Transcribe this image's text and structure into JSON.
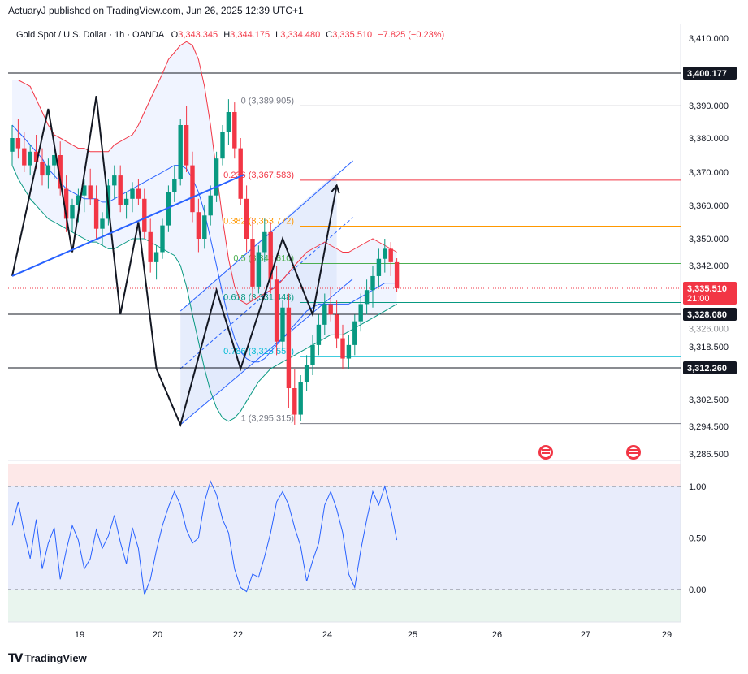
{
  "publisher_line": "ActuaryJ published on TradingView.com, Jun 26, 2025 12:39 UTC+1",
  "brand": "TradingView",
  "header": {
    "symbol": "Gold Spot / U.S. Dollar · 1h · OANDA",
    "open_label": "O",
    "open": "3,343.345",
    "high_label": "H",
    "high": "3,344.175",
    "low_label": "L",
    "low": "3,334.480",
    "close_label": "C",
    "close": "3,335.510",
    "change": "−7.825 (−0.23%)"
  },
  "colors": {
    "up": "#089981",
    "down": "#f23645",
    "bb_upper": "#f23645",
    "bb_lower": "#089981",
    "bb_basis": "#2962ff",
    "stoch": "#2962ff",
    "channel_fill": "#dbe5fb",
    "fib_0382": "#ff9800",
    "fib_05": "#4caf50",
    "fib_0618": "#089981",
    "fib_0786": "#00bcd4"
  },
  "price_axis": [
    "3,410.000",
    "3,390.000",
    "3,380.000",
    "3,370.000",
    "3,360.000",
    "3,350.000",
    "3,342.000",
    "3,318.500",
    "3,302.500",
    "3,294.500",
    "3,286.500"
  ],
  "price_axis_values": [
    3410,
    3390,
    3380,
    3370,
    3360,
    3350,
    3342,
    3318.5,
    3302.5,
    3294.5,
    3286.5
  ],
  "price_labels": [
    {
      "text": "3,400.177",
      "value": 3400.177,
      "bg": "#131722",
      "fg": "#ffffff"
    },
    {
      "text": "3,335.510",
      "sub": "21:00",
      "value": 3335.51,
      "bg": "#f23645",
      "fg": "#ffffff"
    },
    {
      "text": "3,328.080",
      "value": 3328.08,
      "bg": "#131722",
      "fg": "#ffffff"
    },
    {
      "text": "3,312.260",
      "value": 3312.26,
      "bg": "#131722",
      "fg": "#ffffff"
    },
    {
      "text": "3,326.000",
      "value": 3326.0,
      "bg": "#ffffff",
      "fg": "#131722",
      "partial": true
    }
  ],
  "horizontal_lines": [
    {
      "value": 3400.177,
      "color": "#131722"
    },
    {
      "value": 3328.08,
      "color": "#131722"
    },
    {
      "value": 3312.26,
      "color": "#131722"
    }
  ],
  "fib_levels": [
    {
      "label": "0 (3,389.905)",
      "ratio": "0",
      "value": 3389.905,
      "color": "#787b86"
    },
    {
      "label": "0.236 (3,367.583)",
      "ratio": "0.236",
      "value": 3367.583,
      "color": "#f23645"
    },
    {
      "label": "0.382 (3,353.772)",
      "ratio": "0.382",
      "value": 3353.772,
      "color": "#ff9800"
    },
    {
      "label": "0.5 (3,342.610)",
      "ratio": "0.5",
      "value": 3342.61,
      "color": "#4caf50"
    },
    {
      "label": "0.618 (3,331.448)",
      "ratio": "0.618",
      "value": 3331.448,
      "color": "#089981"
    },
    {
      "label": "0.786 (3,315.557)",
      "ratio": "0.786",
      "value": 3315.557,
      "color": "#00bcd4"
    },
    {
      "label": "1 (3,295.315)",
      "ratio": "1",
      "value": 3295.315,
      "color": "#787b86"
    }
  ],
  "time_axis": [
    "19",
    "20",
    "22",
    "24",
    "25",
    "26",
    "27",
    "29"
  ],
  "oscillator": {
    "axis": [
      "1.00",
      "0.50",
      "0.00"
    ],
    "axis_values": [
      1.0,
      0.5,
      0.0
    ],
    "levels": [
      1.0,
      0.5,
      0.0
    ]
  },
  "chart_data": {
    "type": "candlestick",
    "symbol": "XAU/USD",
    "timeframe": "1h",
    "ylim": [
      3284,
      3416
    ],
    "candles_ohlc": [
      [
        3376,
        3384,
        3372,
        3380
      ],
      [
        3380,
        3386,
        3374,
        3377
      ],
      [
        3377,
        3382,
        3370,
        3372
      ],
      [
        3372,
        3378,
        3369,
        3376
      ],
      [
        3376,
        3381,
        3371,
        3373
      ],
      [
        3373,
        3377,
        3366,
        3369
      ],
      [
        3369,
        3374,
        3365,
        3372
      ],
      [
        3372,
        3377,
        3368,
        3375
      ],
      [
        3375,
        3379,
        3363,
        3365
      ],
      [
        3365,
        3369,
        3352,
        3356
      ],
      [
        3356,
        3362,
        3352,
        3360
      ],
      [
        3360,
        3365,
        3355,
        3363
      ],
      [
        3363,
        3368,
        3358,
        3366
      ],
      [
        3366,
        3371,
        3360,
        3362
      ],
      [
        3362,
        3366,
        3350,
        3353
      ],
      [
        3353,
        3358,
        3348,
        3356
      ],
      [
        3356,
        3368,
        3354,
        3366
      ],
      [
        3366,
        3372,
        3362,
        3369
      ],
      [
        3369,
        3372,
        3358,
        3360
      ],
      [
        3360,
        3364,
        3356,
        3362
      ],
      [
        3362,
        3367,
        3358,
        3365
      ],
      [
        3365,
        3368,
        3360,
        3362
      ],
      [
        3362,
        3365,
        3350,
        3352
      ],
      [
        3352,
        3356,
        3340,
        3343
      ],
      [
        3343,
        3348,
        3338,
        3346
      ],
      [
        3346,
        3356,
        3344,
        3354
      ],
      [
        3354,
        3366,
        3352,
        3364
      ],
      [
        3364,
        3372,
        3361,
        3368
      ],
      [
        3368,
        3386,
        3366,
        3384
      ],
      [
        3384,
        3390,
        3370,
        3372
      ],
      [
        3372,
        3376,
        3355,
        3358
      ],
      [
        3358,
        3362,
        3346,
        3350
      ],
      [
        3350,
        3360,
        3347,
        3357
      ],
      [
        3357,
        3366,
        3354,
        3363
      ],
      [
        3363,
        3376,
        3361,
        3374
      ],
      [
        3374,
        3384,
        3372,
        3382
      ],
      [
        3382,
        3392,
        3378,
        3388
      ],
      [
        3388,
        3391,
        3374,
        3377
      ],
      [
        3377,
        3380,
        3360,
        3362
      ],
      [
        3362,
        3366,
        3346,
        3350
      ],
      [
        3350,
        3356,
        3332,
        3336
      ],
      [
        3336,
        3348,
        3334,
        3346
      ],
      [
        3346,
        3356,
        3343,
        3352
      ],
      [
        3352,
        3355,
        3334,
        3338
      ],
      [
        3338,
        3342,
        3316,
        3320
      ],
      [
        3320,
        3332,
        3318,
        3330
      ],
      [
        3330,
        3334,
        3300,
        3306
      ],
      [
        3306,
        3312,
        3295,
        3298
      ],
      [
        3298,
        3310,
        3296,
        3308
      ],
      [
        3308,
        3316,
        3305,
        3313
      ],
      [
        3313,
        3322,
        3310,
        3319
      ],
      [
        3319,
        3328,
        3316,
        3325
      ],
      [
        3325,
        3334,
        3322,
        3331
      ],
      [
        3331,
        3336,
        3326,
        3328
      ],
      [
        3328,
        3332,
        3318,
        3321
      ],
      [
        3321,
        3325,
        3312,
        3315
      ],
      [
        3315,
        3322,
        3312,
        3319
      ],
      [
        3319,
        3328,
        3316,
        3326
      ],
      [
        3326,
        3334,
        3323,
        3331
      ],
      [
        3331,
        3338,
        3328,
        3335
      ],
      [
        3335,
        3342,
        3330,
        3339
      ],
      [
        3339,
        3347,
        3336,
        3344
      ],
      [
        3344,
        3350,
        3340,
        3347
      ],
      [
        3347,
        3349,
        3339,
        3343
      ],
      [
        3343,
        3344.175,
        3334.48,
        3335.51
      ]
    ],
    "bollinger": {
      "upper": [
        3398,
        3398,
        3397,
        3396,
        3392,
        3388,
        3384,
        3381,
        3380,
        3379,
        3378,
        3377,
        3377,
        3376,
        3376,
        3376,
        3376,
        3378,
        3379,
        3380,
        3381,
        3384,
        3388,
        3392,
        3396,
        3400,
        3404,
        3406,
        3408,
        3409,
        3408,
        3404,
        3396,
        3384,
        3370,
        3356,
        3344,
        3336,
        3332,
        3331,
        3332,
        3333,
        3334,
        3335,
        3336,
        3338,
        3340,
        3342,
        3344,
        3346,
        3347,
        3348,
        3349,
        3348,
        3347,
        3346,
        3346,
        3347,
        3348,
        3349,
        3350,
        3349,
        3348,
        3347,
        3346
      ],
      "basis": [
        3384,
        3382,
        3380,
        3378,
        3376,
        3374,
        3371,
        3369,
        3367,
        3365,
        3364,
        3363,
        3362,
        3362,
        3362,
        3361,
        3361,
        3362,
        3363,
        3364,
        3365,
        3366,
        3367,
        3368,
        3369,
        3370,
        3371,
        3372,
        3372,
        3371,
        3368,
        3364,
        3358,
        3350,
        3342,
        3334,
        3327,
        3321,
        3317,
        3315,
        3314,
        3314,
        3315,
        3317,
        3319,
        3321,
        3323,
        3325,
        3327,
        3329,
        3330,
        3331,
        3331,
        3331,
        3331,
        3331,
        3331,
        3332,
        3333,
        3334,
        3335,
        3336,
        3337,
        3337,
        3337
      ],
      "lower": [
        3372,
        3368,
        3365,
        3362,
        3360,
        3358,
        3356,
        3355,
        3354,
        3353,
        3352,
        3351,
        3350,
        3349,
        3349,
        3348,
        3347,
        3347,
        3348,
        3349,
        3350,
        3350,
        3350,
        3349,
        3348,
        3347,
        3346,
        3345,
        3342,
        3336,
        3328,
        3320,
        3312,
        3305,
        3300,
        3297,
        3296,
        3297,
        3299,
        3302,
        3305,
        3308,
        3310,
        3312,
        3313,
        3314,
        3315,
        3316,
        3317,
        3318,
        3319,
        3320,
        3321,
        3322,
        3322,
        3322,
        3323,
        3324,
        3325,
        3326,
        3327,
        3328,
        3329,
        3330,
        3331
      ]
    },
    "stochastic": [
      0.62,
      0.85,
      0.55,
      0.3,
      0.68,
      0.2,
      0.45,
      0.6,
      0.1,
      0.38,
      0.62,
      0.48,
      0.2,
      0.3,
      0.58,
      0.4,
      0.52,
      0.72,
      0.46,
      0.25,
      0.6,
      0.4,
      -0.05,
      0.1,
      0.38,
      0.62,
      0.8,
      0.95,
      0.82,
      0.58,
      0.45,
      0.5,
      0.85,
      1.05,
      0.92,
      0.68,
      0.55,
      0.2,
      0.02,
      -0.02,
      0.15,
      0.12,
      0.32,
      0.55,
      0.85,
      0.95,
      0.82,
      0.6,
      0.42,
      0.08,
      0.28,
      0.45,
      0.82,
      0.95,
      0.78,
      0.55,
      0.15,
      0.02,
      0.38,
      0.68,
      0.95,
      0.82,
      1.0,
      0.78,
      0.48
    ],
    "annotations": {
      "zigzag_points": [
        [
          3339,
          0
        ],
        [
          3389,
          6
        ],
        [
          3346,
          10
        ],
        [
          3393,
          14
        ],
        [
          3328,
          18
        ],
        [
          3355,
          21
        ],
        [
          3312,
          24
        ],
        [
          3295,
          28
        ],
        [
          3335,
          34
        ],
        [
          3312,
          38
        ],
        [
          3350,
          45
        ],
        [
          3328,
          50
        ],
        [
          3366,
          54
        ]
      ],
      "trendline": [
        [
          3339,
          0
        ],
        [
          3360,
          17
        ]
      ],
      "channel": {
        "upper": [
          [
            3329,
            28
          ],
          [
            3370,
            54
          ]
        ],
        "lower": [
          [
            3295,
            28
          ],
          [
            3335,
            54
          ]
        ],
        "mid": [
          [
            3312,
            28
          ],
          [
            3353,
            54
          ]
        ]
      }
    }
  }
}
